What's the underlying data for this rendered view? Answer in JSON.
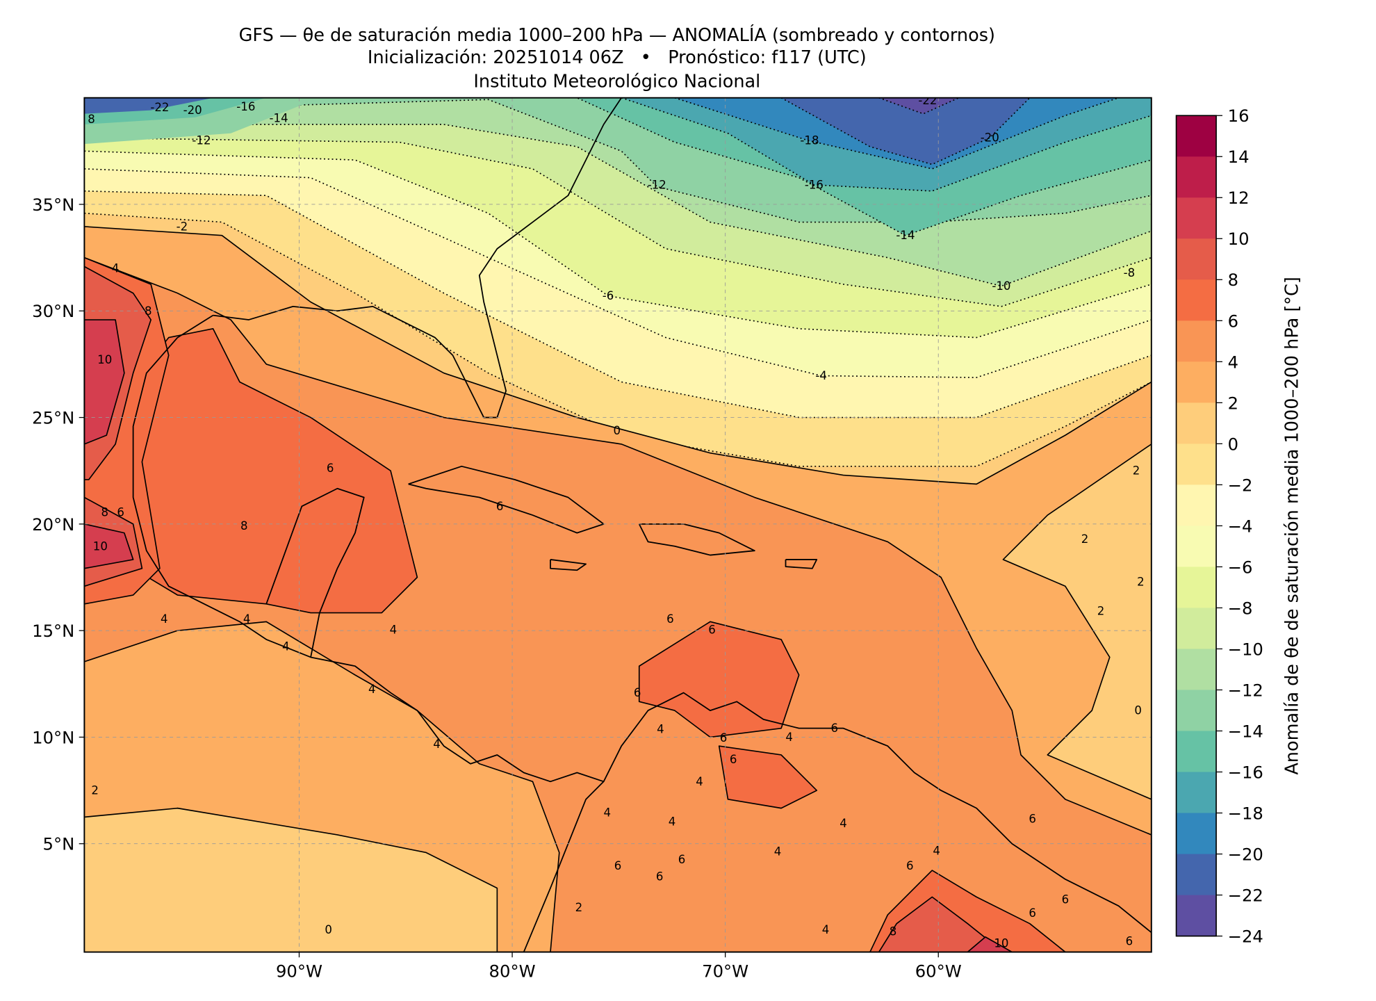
{
  "header": {
    "title_line1": "GFS — θe de saturación media 1000–200 hPa — ANOMALÍA (sombreado y contornos)",
    "title_line2": "Inicialización: 20251014 06Z   •   Pronóstico: f117 (UTC)",
    "title_line3": "Instituto Meteorológico Nacional"
  },
  "map": {
    "lon_ticks": [
      "90°W",
      "80°W",
      "70°W",
      "60°W"
    ],
    "lat_ticks": [
      "35°N",
      "30°N",
      "25°N",
      "20°N",
      "15°N",
      "10°N",
      "5°N"
    ],
    "extent": {
      "lon_min": -100,
      "lon_max": -50,
      "lat_min": 0,
      "lat_max": 40
    },
    "contour_labels": [
      "-22",
      "-20",
      "-16",
      "-14",
      "-12",
      "8",
      "-22",
      "-18",
      "-20",
      "-12",
      "-16",
      "-14",
      "-10",
      "-8",
      "-6",
      "-4",
      "-2",
      "4",
      "8",
      "10",
      "0",
      "6",
      "6",
      "8",
      "6",
      "8",
      "10",
      "2",
      "2",
      "2",
      "2",
      "0",
      "6",
      "6",
      "6",
      "4",
      "6",
      "6",
      "4",
      "6",
      "4",
      "4",
      "4",
      "4",
      "4",
      "4",
      "2",
      "4",
      "6",
      "6",
      "6",
      "4",
      "4",
      "6",
      "4",
      "6",
      "6",
      "8",
      "10",
      "6",
      "6",
      "0",
      "4",
      "2",
      "4",
      "4"
    ]
  },
  "colorbar": {
    "label": "Anomalía de θe de saturación media 1000–200 hPa [°C]",
    "ticks": [
      "16",
      "14",
      "12",
      "10",
      "8",
      "6",
      "4",
      "2",
      "0",
      "−2",
      "−4",
      "−6",
      "−8",
      "−10",
      "−12",
      "−14",
      "−16",
      "−18",
      "−20",
      "−22",
      "−24"
    ],
    "colors": [
      "#9e0142",
      "#be1e4a",
      "#d53e4f",
      "#e55c4a",
      "#f46d43",
      "#f99555",
      "#fdae61",
      "#fecd7b",
      "#fee08b",
      "#fff6b0",
      "#f8fbb2",
      "#e6f598",
      "#d1ec9c",
      "#b0dfa2",
      "#8fd2a4",
      "#66c2a5",
      "#4ba7b0",
      "#3288bd",
      "#4466ad",
      "#5e4fa2"
    ]
  }
}
